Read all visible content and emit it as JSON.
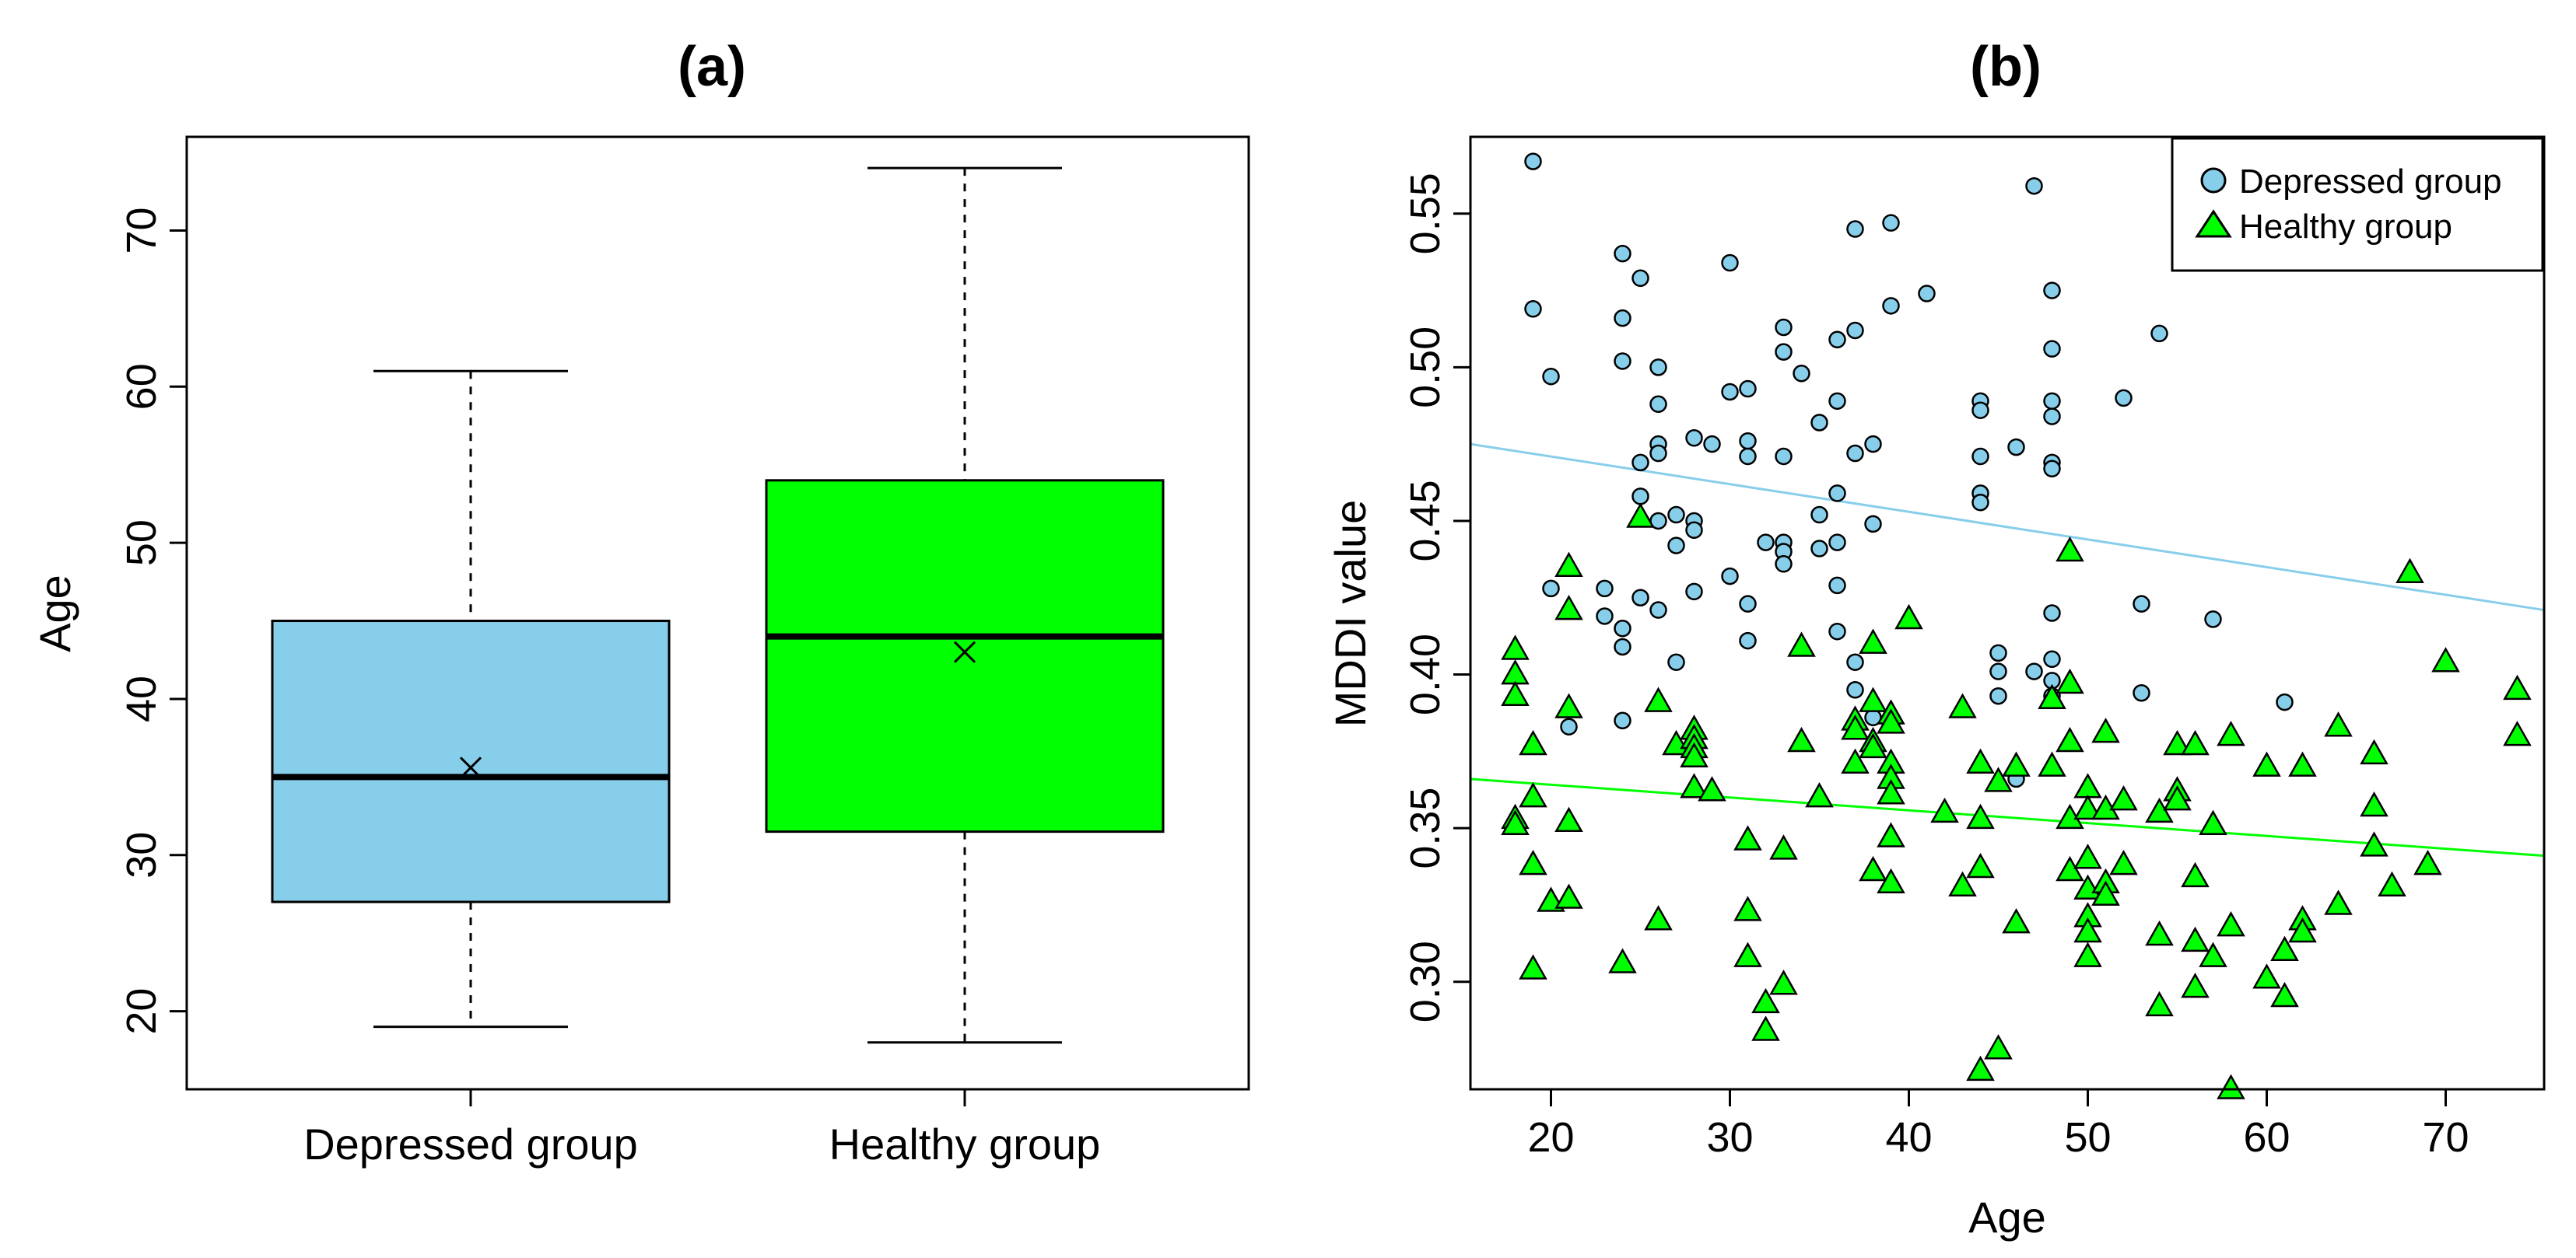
{
  "chart_data": [
    {
      "type": "box",
      "title": "(a)",
      "xlabel": "",
      "ylabel": "Age",
      "ylim": [
        15,
        76
      ],
      "yticks": [
        20,
        30,
        40,
        50,
        60,
        70
      ],
      "categories": [
        "Depressed group",
        "Healthy group"
      ],
      "boxes": [
        {
          "category": "Depressed group",
          "min": 19,
          "q1": 27,
          "median": 35,
          "q3": 45,
          "max": 61,
          "mean": 35.6,
          "color": "#87ceeb"
        },
        {
          "category": "Healthy group",
          "min": 18,
          "q1": 31.5,
          "median": 44,
          "q3": 54,
          "max": 74,
          "mean": 43,
          "color": "#00ff00"
        }
      ],
      "grid": false
    },
    {
      "type": "scatter",
      "title": "(b)",
      "xlabel": "Age",
      "ylabel": "MDDI value",
      "xlim": [
        15.5,
        75.5
      ],
      "ylim": [
        0.265,
        0.575
      ],
      "xticks": [
        20,
        30,
        40,
        50,
        60,
        70
      ],
      "yticks": [
        0.3,
        0.35,
        0.4,
        0.45,
        0.5,
        0.55
      ],
      "legend_position": "top-right",
      "grid": false,
      "series": [
        {
          "name": "Depressed group",
          "marker": "circle",
          "color": "#87ceeb",
          "trend": [
            [
              15.5,
              0.475
            ],
            [
              75.5,
              0.421
            ]
          ],
          "points": [
            [
              19,
              0.567
            ],
            [
              19,
              0.519
            ],
            [
              20,
              0.497
            ],
            [
              20,
              0.428
            ],
            [
              21,
              0.383
            ],
            [
              23,
              0.428
            ],
            [
              23,
              0.419
            ],
            [
              24,
              0.537
            ],
            [
              24,
              0.516
            ],
            [
              24,
              0.502
            ],
            [
              24,
              0.415
            ],
            [
              24,
              0.409
            ],
            [
              24,
              0.385
            ],
            [
              25,
              0.529
            ],
            [
              25,
              0.469
            ],
            [
              25,
              0.458
            ],
            [
              25,
              0.425
            ],
            [
              26,
              0.5
            ],
            [
              26,
              0.488
            ],
            [
              26,
              0.475
            ],
            [
              26,
              0.472
            ],
            [
              26,
              0.45
            ],
            [
              26,
              0.421
            ],
            [
              27,
              0.452
            ],
            [
              27,
              0.442
            ],
            [
              27,
              0.404
            ],
            [
              28,
              0.477
            ],
            [
              28,
              0.45
            ],
            [
              28,
              0.447
            ],
            [
              28,
              0.427
            ],
            [
              29,
              0.475
            ],
            [
              30,
              0.534
            ],
            [
              30,
              0.492
            ],
            [
              30,
              0.432
            ],
            [
              31,
              0.493
            ],
            [
              31,
              0.476
            ],
            [
              31,
              0.471
            ],
            [
              31,
              0.423
            ],
            [
              31,
              0.411
            ],
            [
              32,
              0.443
            ],
            [
              33,
              0.513
            ],
            [
              33,
              0.505
            ],
            [
              33,
              0.471
            ],
            [
              33,
              0.443
            ],
            [
              33,
              0.44
            ],
            [
              33,
              0.436
            ],
            [
              34,
              0.498
            ],
            [
              35,
              0.482
            ],
            [
              35,
              0.452
            ],
            [
              35,
              0.441
            ],
            [
              36,
              0.509
            ],
            [
              36,
              0.489
            ],
            [
              36,
              0.459
            ],
            [
              36,
              0.443
            ],
            [
              36,
              0.429
            ],
            [
              36,
              0.414
            ],
            [
              37,
              0.545
            ],
            [
              37,
              0.512
            ],
            [
              37,
              0.472
            ],
            [
              37,
              0.404
            ],
            [
              37,
              0.395
            ],
            [
              38,
              0.475
            ],
            [
              38,
              0.449
            ],
            [
              38,
              0.386
            ],
            [
              39,
              0.547
            ],
            [
              39,
              0.52
            ],
            [
              41,
              0.524
            ],
            [
              44,
              0.489
            ],
            [
              44,
              0.486
            ],
            [
              44,
              0.471
            ],
            [
              44,
              0.459
            ],
            [
              44,
              0.456
            ],
            [
              45,
              0.407
            ],
            [
              45,
              0.401
            ],
            [
              45,
              0.393
            ],
            [
              46,
              0.474
            ],
            [
              46,
              0.366
            ],
            [
              47,
              0.559
            ],
            [
              47,
              0.401
            ],
            [
              48,
              0.525
            ],
            [
              48,
              0.506
            ],
            [
              48,
              0.489
            ],
            [
              48,
              0.484
            ],
            [
              48,
              0.469
            ],
            [
              48,
              0.467
            ],
            [
              48,
              0.42
            ],
            [
              48,
              0.405
            ],
            [
              48,
              0.398
            ],
            [
              48,
              0.393
            ],
            [
              52,
              0.49
            ],
            [
              53,
              0.423
            ],
            [
              53,
              0.394
            ],
            [
              54,
              0.511
            ],
            [
              57,
              0.418
            ],
            [
              61,
              0.391
            ]
          ]
        },
        {
          "name": "Healthy group",
          "marker": "triangle",
          "color": "#00ff00",
          "trend": [
            [
              15.5,
              0.366
            ],
            [
              75.5,
              0.341
            ]
          ],
          "points": [
            [
              18,
              0.408
            ],
            [
              18,
              0.4
            ],
            [
              18,
              0.393
            ],
            [
              18,
              0.353
            ],
            [
              18,
              0.351
            ],
            [
              19,
              0.377
            ],
            [
              19,
              0.36
            ],
            [
              19,
              0.338
            ],
            [
              19,
              0.304
            ],
            [
              20,
              0.326
            ],
            [
              21,
              0.435
            ],
            [
              21,
              0.421
            ],
            [
              21,
              0.389
            ],
            [
              21,
              0.352
            ],
            [
              21,
              0.327
            ],
            [
              24,
              0.306
            ],
            [
              25,
              0.451
            ],
            [
              26,
              0.391
            ],
            [
              26,
              0.32
            ],
            [
              27,
              0.377
            ],
            [
              28,
              0.382
            ],
            [
              28,
              0.379
            ],
            [
              28,
              0.376
            ],
            [
              28,
              0.373
            ],
            [
              28,
              0.363
            ],
            [
              29,
              0.362
            ],
            [
              31,
              0.346
            ],
            [
              31,
              0.323
            ],
            [
              31,
              0.308
            ],
            [
              32,
              0.293
            ],
            [
              32,
              0.284
            ],
            [
              33,
              0.343
            ],
            [
              33,
              0.299
            ],
            [
              34,
              0.409
            ],
            [
              34,
              0.378
            ],
            [
              35,
              0.36
            ],
            [
              37,
              0.385
            ],
            [
              37,
              0.382
            ],
            [
              37,
              0.371
            ],
            [
              38,
              0.41
            ],
            [
              38,
              0.391
            ],
            [
              38,
              0.378
            ],
            [
              38,
              0.376
            ],
            [
              38,
              0.336
            ],
            [
              39,
              0.387
            ],
            [
              39,
              0.384
            ],
            [
              39,
              0.371
            ],
            [
              39,
              0.366
            ],
            [
              39,
              0.361
            ],
            [
              39,
              0.347
            ],
            [
              39,
              0.332
            ],
            [
              40,
              0.418
            ],
            [
              42,
              0.355
            ],
            [
              43,
              0.389
            ],
            [
              43,
              0.331
            ],
            [
              44,
              0.371
            ],
            [
              44,
              0.353
            ],
            [
              44,
              0.337
            ],
            [
              44,
              0.271
            ],
            [
              45,
              0.365
            ],
            [
              45,
              0.278
            ],
            [
              46,
              0.37
            ],
            [
              46,
              0.319
            ],
            [
              48,
              0.392
            ],
            [
              48,
              0.37
            ],
            [
              49,
              0.44
            ],
            [
              49,
              0.397
            ],
            [
              49,
              0.378
            ],
            [
              49,
              0.353
            ],
            [
              49,
              0.336
            ],
            [
              50,
              0.363
            ],
            [
              50,
              0.356
            ],
            [
              50,
              0.34
            ],
            [
              50,
              0.33
            ],
            [
              50,
              0.321
            ],
            [
              50,
              0.316
            ],
            [
              50,
              0.308
            ],
            [
              51,
              0.381
            ],
            [
              51,
              0.356
            ],
            [
              51,
              0.332
            ],
            [
              51,
              0.328
            ],
            [
              52,
              0.359
            ],
            [
              52,
              0.338
            ],
            [
              54,
              0.355
            ],
            [
              54,
              0.315
            ],
            [
              54,
              0.292
            ],
            [
              55,
              0.377
            ],
            [
              55,
              0.362
            ],
            [
              55,
              0.359
            ],
            [
              56,
              0.377
            ],
            [
              56,
              0.334
            ],
            [
              56,
              0.313
            ],
            [
              56,
              0.298
            ],
            [
              57,
              0.351
            ],
            [
              57,
              0.308
            ],
            [
              58,
              0.38
            ],
            [
              58,
              0.318
            ],
            [
              58,
              0.265
            ],
            [
              60,
              0.37
            ],
            [
              60,
              0.301
            ],
            [
              61,
              0.31
            ],
            [
              61,
              0.295
            ],
            [
              62,
              0.37
            ],
            [
              62,
              0.32
            ],
            [
              62,
              0.316
            ],
            [
              64,
              0.383
            ],
            [
              64,
              0.325
            ],
            [
              66,
              0.374
            ],
            [
              66,
              0.357
            ],
            [
              66,
              0.344
            ],
            [
              67,
              0.331
            ],
            [
              68,
              0.433
            ],
            [
              69,
              0.338
            ],
            [
              70,
              0.404
            ],
            [
              74,
              0.395
            ],
            [
              74,
              0.38
            ]
          ]
        }
      ]
    }
  ]
}
